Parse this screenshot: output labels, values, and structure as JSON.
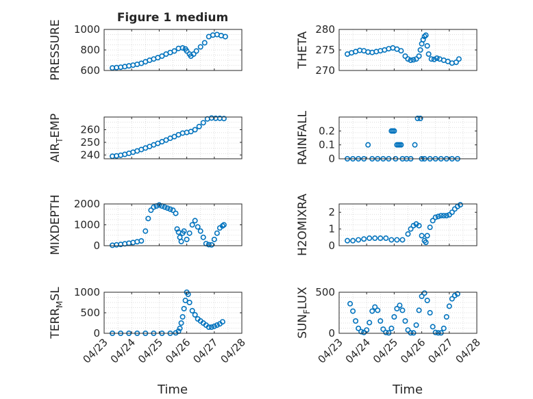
{
  "figure": {
    "title": "Figure 1 medium",
    "xlabel": "Time",
    "xticklabels": [
      "04/23",
      "04/24",
      "04/25",
      "04/26",
      "04/27",
      "04/28"
    ],
    "marker_color": "#0072BD",
    "axes_color": "#262626",
    "grid_color": "#DFDFDF"
  },
  "chart_data": [
    {
      "type": "scatter",
      "title": "Figure 1 medium",
      "ylabel": "PRESSURE",
      "ylabel_sub": "",
      "xlim": [
        "04/23",
        "04/28"
      ],
      "ylim": [
        600,
        1000
      ],
      "yticks": [
        600,
        800,
        1000
      ],
      "grid": true,
      "x": [
        0.3,
        0.45,
        0.6,
        0.75,
        0.9,
        1.05,
        1.2,
        1.35,
        1.5,
        1.65,
        1.8,
        1.95,
        2.1,
        2.25,
        2.4,
        2.55,
        2.7,
        2.85,
        2.95,
        3.0,
        3.1,
        3.15,
        3.25,
        3.35,
        3.5,
        3.65,
        3.8,
        3.95,
        4.1,
        4.25,
        4.4
      ],
      "y": [
        625,
        628,
        632,
        638,
        645,
        652,
        660,
        670,
        685,
        700,
        712,
        725,
        740,
        760,
        775,
        790,
        815,
        820,
        810,
        790,
        760,
        740,
        760,
        790,
        830,
        870,
        930,
        945,
        950,
        940,
        930
      ]
    },
    {
      "type": "scatter",
      "title": "",
      "ylabel": "THETA",
      "ylabel_sub": "",
      "xlim": [
        "04/23",
        "04/28"
      ],
      "ylim": [
        270,
        280
      ],
      "yticks": [
        270,
        275,
        280
      ],
      "grid": true,
      "x": [
        0.3,
        0.45,
        0.6,
        0.75,
        0.9,
        1.05,
        1.2,
        1.35,
        1.5,
        1.65,
        1.8,
        1.95,
        2.1,
        2.25,
        2.4,
        2.5,
        2.6,
        2.7,
        2.8,
        2.9,
        2.95,
        3.0,
        3.05,
        3.1,
        3.15,
        3.2,
        3.25,
        3.35,
        3.45,
        3.55,
        3.65,
        3.8,
        3.95,
        4.1,
        4.25,
        4.35
      ],
      "y": [
        274.0,
        274.3,
        274.6,
        274.9,
        274.8,
        274.5,
        274.4,
        274.6,
        274.8,
        275.0,
        275.3,
        275.5,
        275.2,
        274.8,
        273.5,
        272.8,
        272.5,
        272.6,
        272.8,
        273.5,
        275.0,
        276.5,
        277.5,
        278.3,
        278.6,
        276.0,
        274.0,
        272.8,
        272.7,
        273.0,
        272.8,
        272.5,
        272.2,
        271.8,
        272.0,
        272.8
      ]
    },
    {
      "type": "scatter",
      "title": "",
      "ylabel": "AIR",
      "ylabel_sub": "T",
      "ylabel_after": "EMP",
      "xlim": [
        "04/23",
        "04/28"
      ],
      "ylim": [
        237,
        270
      ],
      "yticks": [
        240,
        250,
        260
      ],
      "grid": true,
      "x": [
        0.3,
        0.45,
        0.6,
        0.75,
        0.9,
        1.05,
        1.2,
        1.35,
        1.5,
        1.65,
        1.8,
        1.95,
        2.1,
        2.25,
        2.4,
        2.55,
        2.7,
        2.85,
        3.0,
        3.15,
        3.3,
        3.45,
        3.6,
        3.75,
        3.9,
        4.05,
        4.2,
        4.35
      ],
      "y": [
        239.0,
        239.3,
        239.8,
        240.5,
        241.3,
        242.2,
        243.2,
        244.3,
        245.5,
        246.7,
        248.0,
        249.2,
        250.5,
        251.8,
        253.2,
        254.5,
        256.0,
        257.3,
        257.8,
        258.5,
        260.0,
        262.5,
        265.5,
        268.5,
        269.2,
        269.0,
        269.0,
        268.8
      ]
    },
    {
      "type": "scatter",
      "title": "",
      "ylabel": "RAINFALL",
      "ylabel_sub": "",
      "xlim": [
        "04/23",
        "04/28"
      ],
      "ylim": [
        0,
        0.3
      ],
      "yticks": [
        0,
        0.1,
        0.2
      ],
      "grid": true,
      "x": [
        0.3,
        0.5,
        0.7,
        0.9,
        1.05,
        1.2,
        1.4,
        1.6,
        1.8,
        1.9,
        1.95,
        2.0,
        2.05,
        2.1,
        2.15,
        2.2,
        2.25,
        2.3,
        2.45,
        2.6,
        2.75,
        2.85,
        2.95,
        3.0,
        3.1,
        3.3,
        3.5,
        3.7,
        3.9,
        4.1,
        4.3
      ],
      "y": [
        0,
        0,
        0,
        0,
        0.1,
        0,
        0,
        0,
        0,
        0.2,
        0.2,
        0.2,
        0,
        0.1,
        0.1,
        0.1,
        0.1,
        0,
        0,
        0,
        0.1,
        0.29,
        0.29,
        0,
        0,
        0,
        0,
        0,
        0,
        0,
        0
      ]
    },
    {
      "type": "scatter",
      "title": "",
      "ylabel": "MIXDEPTH",
      "ylabel_sub": "",
      "xlim": [
        "04/23",
        "04/28"
      ],
      "ylim": [
        0,
        2000
      ],
      "yticks": [
        0,
        1000,
        2000
      ],
      "grid": true,
      "x": [
        0.3,
        0.45,
        0.6,
        0.75,
        0.9,
        1.05,
        1.2,
        1.35,
        1.5,
        1.6,
        1.7,
        1.8,
        1.9,
        2.0,
        2.1,
        2.2,
        2.3,
        2.4,
        2.5,
        2.6,
        2.65,
        2.7,
        2.75,
        2.8,
        2.85,
        2.9,
        3.0,
        3.1,
        3.2,
        3.3,
        3.4,
        3.5,
        3.6,
        3.7,
        3.8,
        3.9,
        4.0,
        4.1,
        4.2,
        4.3,
        4.35
      ],
      "y": [
        20,
        40,
        60,
        90,
        120,
        150,
        190,
        230,
        700,
        1300,
        1700,
        1850,
        1900,
        1950,
        1900,
        1850,
        1800,
        1750,
        1700,
        1550,
        800,
        650,
        400,
        200,
        600,
        700,
        300,
        600,
        1000,
        1200,
        900,
        700,
        400,
        100,
        50,
        40,
        300,
        600,
        850,
        950,
        1000
      ]
    },
    {
      "type": "scatter",
      "title": "",
      "ylabel": "H2OMIXRA",
      "ylabel_sub": "",
      "xlim": [
        "04/23",
        "04/28"
      ],
      "ylim": [
        0,
        2.5
      ],
      "yticks": [
        0,
        1,
        2
      ],
      "grid": true,
      "x": [
        0.3,
        0.5,
        0.7,
        0.9,
        1.1,
        1.3,
        1.5,
        1.7,
        1.9,
        2.1,
        2.3,
        2.5,
        2.6,
        2.7,
        2.8,
        2.9,
        3.0,
        3.1,
        3.15,
        3.2,
        3.3,
        3.4,
        3.5,
        3.6,
        3.7,
        3.8,
        3.9,
        4.0,
        4.1,
        4.2,
        4.3,
        4.4
      ],
      "y": [
        0.3,
        0.3,
        0.35,
        0.4,
        0.45,
        0.45,
        0.45,
        0.45,
        0.35,
        0.35,
        0.35,
        0.7,
        1.0,
        1.2,
        1.3,
        1.2,
        0.6,
        0.3,
        0.2,
        0.6,
        1.1,
        1.5,
        1.7,
        1.75,
        1.8,
        1.8,
        1.8,
        1.85,
        2.0,
        2.2,
        2.35,
        2.45
      ]
    },
    {
      "type": "scatter",
      "title": "",
      "ylabel": "TERR",
      "ylabel_sub": "M",
      "ylabel_after": "SL",
      "xlim": [
        "04/23",
        "04/28"
      ],
      "ylim": [
        0,
        1000
      ],
      "yticks": [
        0,
        500,
        1000
      ],
      "grid": true,
      "x": [
        0.3,
        0.6,
        0.9,
        1.2,
        1.5,
        1.8,
        2.1,
        2.4,
        2.6,
        2.7,
        2.75,
        2.8,
        2.85,
        2.9,
        2.95,
        3.0,
        3.05,
        3.1,
        3.2,
        3.3,
        3.4,
        3.5,
        3.6,
        3.7,
        3.8,
        3.9,
        4.0,
        4.1,
        4.2,
        4.3
      ],
      "y": [
        0,
        0,
        0,
        0,
        0,
        0,
        0,
        0,
        10,
        50,
        120,
        250,
        400,
        600,
        800,
        1000,
        950,
        750,
        550,
        450,
        350,
        300,
        250,
        200,
        150,
        150,
        170,
        200,
        230,
        280
      ]
    },
    {
      "type": "scatter",
      "title": "",
      "ylabel": "SUN",
      "ylabel_sub": "F",
      "ylabel_after": "LUX",
      "xlim": [
        "04/23",
        "04/28"
      ],
      "ylim": [
        0,
        500
      ],
      "yticks": [
        0,
        500
      ],
      "grid": true,
      "x": [
        0.4,
        0.5,
        0.6,
        0.7,
        0.8,
        0.9,
        1.0,
        1.1,
        1.2,
        1.3,
        1.4,
        1.5,
        1.6,
        1.7,
        1.8,
        1.9,
        2.0,
        2.1,
        2.2,
        2.3,
        2.4,
        2.5,
        2.6,
        2.7,
        2.8,
        2.9,
        3.0,
        3.1,
        3.2,
        3.3,
        3.4,
        3.5,
        3.6,
        3.7,
        3.8,
        3.9,
        4.0,
        4.1,
        4.2,
        4.3
      ],
      "y": [
        360,
        270,
        150,
        60,
        20,
        10,
        40,
        130,
        270,
        320,
        280,
        150,
        50,
        10,
        5,
        60,
        200,
        300,
        340,
        280,
        150,
        40,
        5,
        5,
        100,
        280,
        450,
        490,
        400,
        250,
        80,
        10,
        5,
        5,
        60,
        200,
        330,
        420,
        460,
        480
      ]
    }
  ]
}
